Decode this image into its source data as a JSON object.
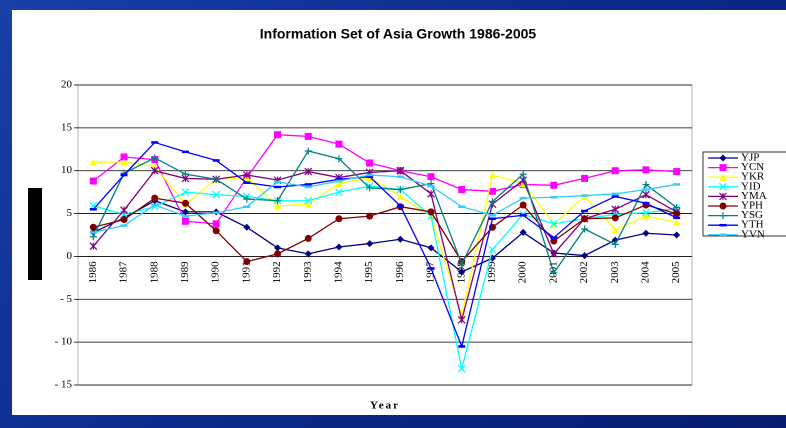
{
  "chart_data": {
    "type": "line",
    "title": "Information Set of Asia Growth 1986-2005",
    "x_label": "Year",
    "categories": [
      "1986",
      "1987",
      "1988",
      "1989",
      "1990",
      "1991",
      "1992",
      "1993",
      "1994",
      "1995",
      "1996",
      "1997",
      "1998",
      "1999",
      "2000",
      "2001",
      "2002",
      "2003",
      "2004",
      "2005"
    ],
    "ylim": [
      -15,
      20
    ],
    "yticks": [
      20,
      15,
      10,
      5,
      0,
      {
        "value": -5,
        "label": "- 5"
      },
      {
        "value": -10,
        "label": "- 10"
      },
      {
        "value": -15,
        "label": "- 15"
      }
    ],
    "grid": true,
    "legend": "right",
    "series": [
      {
        "name": "YJP",
        "color": "#000080",
        "marker": "diamond",
        "values": [
          2.8,
          4.5,
          6.5,
          5.2,
          5.2,
          3.4,
          1.0,
          0.3,
          1.1,
          1.5,
          2.0,
          1.0,
          -1.8,
          -0.2,
          2.8,
          0.4,
          0.1,
          1.9,
          2.7,
          2.5
        ]
      },
      {
        "name": "YCN",
        "color": "#ff00ff",
        "marker": "square",
        "values": [
          8.8,
          11.6,
          11.3,
          4.1,
          3.8,
          9.2,
          14.2,
          14.0,
          13.1,
          10.9,
          10.0,
          9.3,
          7.8,
          7.6,
          8.4,
          8.3,
          9.1,
          10.0,
          10.1,
          9.9
        ]
      },
      {
        "name": "YKR",
        "color": "#ffff00",
        "marker": "triangle",
        "values": [
          11.0,
          11.0,
          10.5,
          6.1,
          9.0,
          9.2,
          5.9,
          6.1,
          8.5,
          9.2,
          7.0,
          4.7,
          -6.9,
          9.5,
          8.5,
          3.8,
          7.0,
          3.1,
          4.7,
          4.0
        ]
      },
      {
        "name": "YID",
        "color": "#00ffff",
        "marker": "x",
        "values": [
          5.9,
          4.9,
          5.8,
          7.5,
          7.2,
          7.0,
          6.5,
          6.5,
          7.5,
          8.2,
          7.8,
          4.7,
          -13.1,
          0.8,
          4.9,
          3.8,
          4.4,
          4.9,
          5.1,
          5.6
        ]
      },
      {
        "name": "YMA",
        "color": "#800080",
        "marker": "star",
        "values": [
          1.2,
          5.4,
          10.0,
          9.1,
          9.0,
          9.5,
          8.9,
          9.9,
          9.2,
          9.8,
          10.0,
          7.3,
          -7.4,
          6.1,
          8.9,
          0.3,
          4.4,
          5.5,
          7.2,
          5.2
        ]
      },
      {
        "name": "YPH",
        "color": "#800000",
        "marker": "circle",
        "values": [
          3.4,
          4.3,
          6.8,
          6.2,
          3.0,
          -0.6,
          0.3,
          2.1,
          4.4,
          4.7,
          5.8,
          5.2,
          -0.6,
          3.4,
          6.0,
          1.8,
          4.4,
          4.5,
          6.0,
          5.0
        ]
      },
      {
        "name": "YSG",
        "color": "#008080",
        "marker": "plus",
        "values": [
          2.3,
          9.7,
          11.5,
          9.6,
          9.0,
          6.7,
          6.5,
          12.3,
          11.4,
          8.0,
          7.8,
          8.5,
          -0.9,
          6.4,
          9.6,
          -1.9,
          3.2,
          1.4,
          8.4,
          5.7
        ]
      },
      {
        "name": "YTH",
        "color": "#0000ff",
        "marker": "dash",
        "values": [
          5.5,
          9.5,
          13.3,
          12.2,
          11.2,
          8.6,
          8.1,
          8.4,
          9.0,
          9.3,
          5.9,
          -1.4,
          -10.5,
          4.4,
          4.8,
          2.2,
          5.3,
          7.0,
          6.2,
          4.5
        ]
      },
      {
        "name": "YVN",
        "color": "#33ccff",
        "marker": "dash",
        "values": [
          2.8,
          3.6,
          6.0,
          4.7,
          5.1,
          5.8,
          8.7,
          8.1,
          8.8,
          9.5,
          9.3,
          8.2,
          5.8,
          4.8,
          6.8,
          6.9,
          7.1,
          7.3,
          7.8,
          8.4
        ]
      }
    ]
  }
}
